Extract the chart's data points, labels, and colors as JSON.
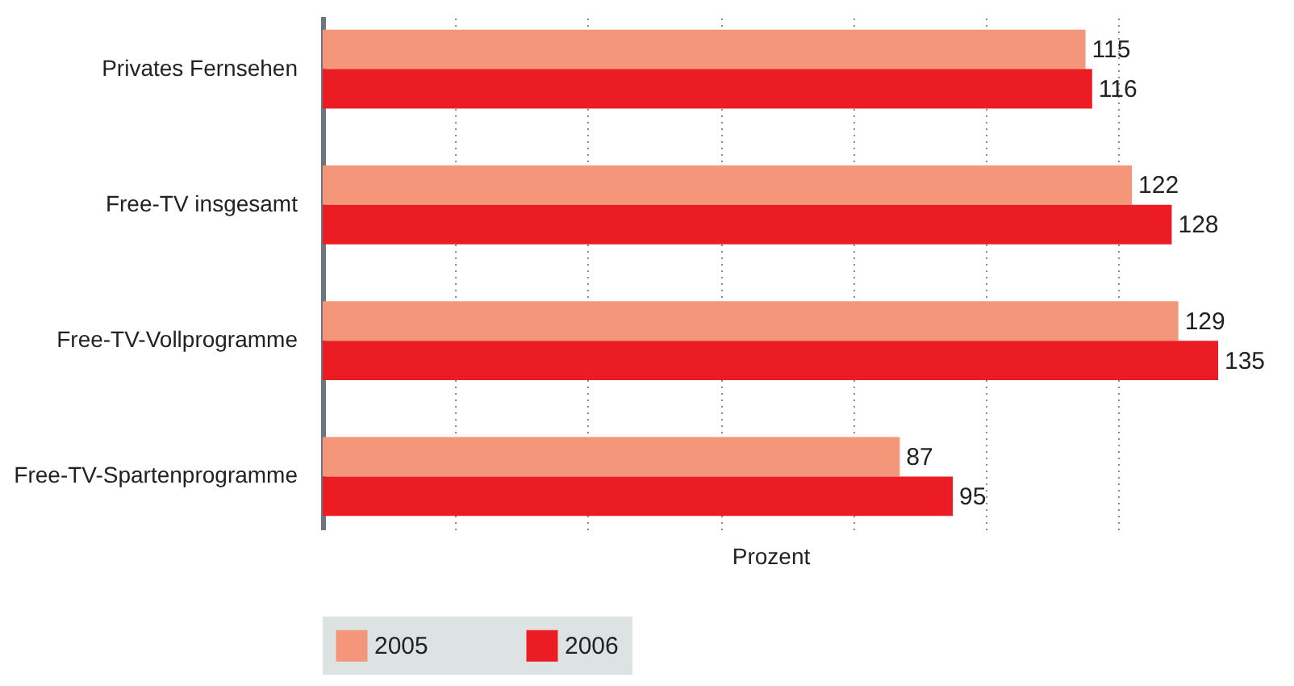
{
  "chart_data": {
    "type": "bar",
    "orientation": "horizontal",
    "categories": [
      "Privates Fernsehen",
      "Free-TV insgesamt",
      "Free-TV-Vollprogramme",
      "Free-TV-Spartenprogramme"
    ],
    "series": [
      {
        "name": "2005",
        "color": "#f4967a",
        "values": [
          115,
          122,
          129,
          87
        ]
      },
      {
        "name": "2006",
        "color": "#ec1c24",
        "values": [
          116,
          128,
          135,
          95
        ]
      }
    ],
    "xlabel": "Prozent",
    "xticks": [
      {
        "value": 20,
        "label": null
      },
      {
        "value": 40,
        "label": null
      },
      {
        "value": 60,
        "label": null
      },
      {
        "value": 80,
        "label": null
      },
      {
        "value": 100,
        "label": null
      },
      {
        "value": 120,
        "label": null
      }
    ],
    "grid": "x",
    "legend": "bottom",
    "data_labels": true,
    "tick_labels": "y"
  }
}
